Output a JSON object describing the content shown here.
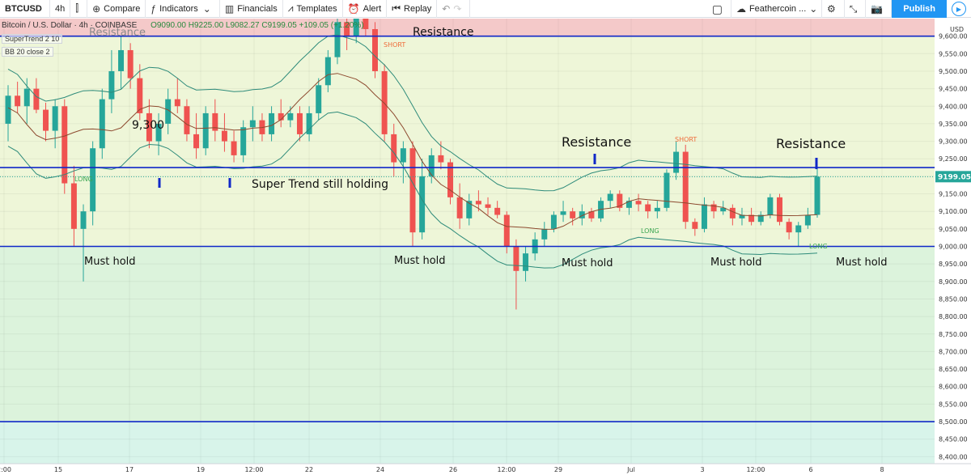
{
  "toolbar": {
    "symbol": "BTCUSD",
    "interval": "4h",
    "candle_icon": "candlestick-icon",
    "compare": "Compare",
    "indicators": "Indicators",
    "financials": "Financials",
    "templates": "Templates",
    "alert": "Alert",
    "replay": "Replay",
    "layout_name": "Feathercoin ...",
    "publish": "Publish"
  },
  "legend": {
    "title": "Bitcoin / U.S. Dollar · 4h · COINBASE",
    "ohlc": "O9090.00 H9225.00 L9082.27 C9199.05 +109.05 (+1.20%)",
    "indicator1": "SuperTrend 2 10",
    "indicator2": "BB 20 close 2"
  },
  "price_axis": {
    "currency": "USD",
    "labels": [
      "9,600.00",
      "9,550.00",
      "9,500.00",
      "9,450.00",
      "9,400.00",
      "9,350.00",
      "9,300.00",
      "9,250.00",
      "9,200.00",
      "9,150.00",
      "9,100.00",
      "9,050.00",
      "9,000.00",
      "8,950.00",
      "8,900.00",
      "8,850.00",
      "8,800.00",
      "8,750.00",
      "8,700.00",
      "8,650.00",
      "8,600.00",
      "8,550.00",
      "8,500.00",
      "8,450.00",
      "8,400.00"
    ],
    "current_price": "9199.05"
  },
  "time_axis": {
    "labels": [
      "2:00",
      "15",
      "17",
      "19",
      "12:00",
      "22",
      "24",
      "26",
      "12:00",
      "29",
      "Jul",
      "3",
      "12:00",
      "6",
      "8"
    ]
  },
  "annotations": {
    "resistance_top_left": "Resistance",
    "resistance_top": "Resistance",
    "resistance_mid": "Resistance",
    "resistance_right": "Resistance",
    "price_9300": "9,300",
    "supertrend": "Super Trend still holding",
    "must_hold_1": "Must hold",
    "must_hold_2": "Must hold",
    "must_hold_3": "Must hold",
    "must_hold_4": "Must hold",
    "must_hold_5": "Must hold",
    "long_1": "LONG",
    "long_2": "LONG",
    "long_3": "LONG",
    "short_1": "SHORT",
    "short_2": "SHORT"
  },
  "colors": {
    "resistance_zone": "#f4c9c9",
    "bull": "#26a69a",
    "bear": "#ef5350",
    "level_line": "#1028c8",
    "accent": "#2196f3"
  },
  "chart_data": {
    "type": "candlestick",
    "y_range": [
      8380,
      9650
    ],
    "levels": [
      9600,
      9225,
      9000,
      8500
    ],
    "candles": [
      [
        9350,
        9460,
        9300,
        9430
      ],
      [
        9430,
        9470,
        9380,
        9400
      ],
      [
        9400,
        9480,
        9350,
        9450
      ],
      [
        9450,
        9480,
        9380,
        9390
      ],
      [
        9390,
        9410,
        9300,
        9330
      ],
      [
        9330,
        9420,
        9280,
        9400
      ],
      [
        9400,
        9420,
        9150,
        9180
      ],
      [
        9180,
        9230,
        9000,
        9050
      ],
      [
        9050,
        9120,
        8900,
        9100
      ],
      [
        9100,
        9300,
        9060,
        9280
      ],
      [
        9280,
        9450,
        9250,
        9420
      ],
      [
        9420,
        9560,
        9380,
        9500
      ],
      [
        9500,
        9600,
        9450,
        9560
      ],
      [
        9560,
        9580,
        9450,
        9480
      ],
      [
        9480,
        9520,
        9360,
        9380
      ],
      [
        9380,
        9420,
        9280,
        9300
      ],
      [
        9300,
        9380,
        9260,
        9350
      ],
      [
        9350,
        9450,
        9320,
        9420
      ],
      [
        9420,
        9480,
        9380,
        9400
      ],
      [
        9400,
        9420,
        9300,
        9320
      ],
      [
        9320,
        9380,
        9250,
        9280
      ],
      [
        9280,
        9400,
        9260,
        9380
      ],
      [
        9380,
        9420,
        9300,
        9330
      ],
      [
        9330,
        9380,
        9270,
        9300
      ],
      [
        9300,
        9330,
        9240,
        9260
      ],
      [
        9260,
        9360,
        9240,
        9340
      ],
      [
        9340,
        9400,
        9300,
        9360
      ],
      [
        9360,
        9380,
        9300,
        9320
      ],
      [
        9320,
        9400,
        9300,
        9380
      ],
      [
        9380,
        9420,
        9340,
        9360
      ],
      [
        9360,
        9400,
        9340,
        9380
      ],
      [
        9380,
        9400,
        9300,
        9320
      ],
      [
        9320,
        9400,
        9300,
        9380
      ],
      [
        9380,
        9480,
        9360,
        9460
      ],
      [
        9460,
        9560,
        9440,
        9540
      ],
      [
        9540,
        9660,
        9520,
        9640
      ],
      [
        9640,
        9690,
        9560,
        9600
      ],
      [
        9600,
        9680,
        9580,
        9650
      ],
      [
        9650,
        9700,
        9600,
        9620
      ],
      [
        9620,
        9640,
        9480,
        9500
      ],
      [
        9500,
        9520,
        9300,
        9320
      ],
      [
        9320,
        9350,
        9200,
        9240
      ],
      [
        9240,
        9300,
        9180,
        9280
      ],
      [
        9280,
        9300,
        9000,
        9040
      ],
      [
        9040,
        9250,
        9020,
        9200
      ],
      [
        9200,
        9280,
        9180,
        9260
      ],
      [
        9260,
        9300,
        9220,
        9240
      ],
      [
        9240,
        9250,
        9120,
        9140
      ],
      [
        9140,
        9180,
        9050,
        9080
      ],
      [
        9080,
        9150,
        9060,
        9130
      ],
      [
        9130,
        9160,
        9100,
        9120
      ],
      [
        9120,
        9140,
        9090,
        9110
      ],
      [
        9110,
        9130,
        9080,
        9090
      ],
      [
        9090,
        9100,
        8980,
        9000
      ],
      [
        9000,
        9020,
        8820,
        8930
      ],
      [
        8930,
        9000,
        8900,
        8980
      ],
      [
        8980,
        9040,
        8960,
        9020
      ],
      [
        9020,
        9070,
        9000,
        9050
      ],
      [
        9050,
        9100,
        9040,
        9090
      ],
      [
        9090,
        9130,
        9070,
        9100
      ],
      [
        9100,
        9110,
        9060,
        9080
      ],
      [
        9080,
        9120,
        9060,
        9100
      ],
      [
        9100,
        9110,
        9070,
        9080
      ],
      [
        9080,
        9140,
        9070,
        9130
      ],
      [
        9130,
        9160,
        9110,
        9150
      ],
      [
        9150,
        9160,
        9100,
        9110
      ],
      [
        9110,
        9140,
        9090,
        9130
      ],
      [
        9130,
        9150,
        9100,
        9120
      ],
      [
        9120,
        9130,
        9080,
        9100
      ],
      [
        9100,
        9130,
        9080,
        9110
      ],
      [
        9110,
        9220,
        9100,
        9210
      ],
      [
        9210,
        9300,
        9190,
        9270
      ],
      [
        9270,
        9290,
        9050,
        9070
      ],
      [
        9070,
        9080,
        9030,
        9050
      ],
      [
        9050,
        9140,
        9040,
        9120
      ],
      [
        9120,
        9130,
        9080,
        9100
      ],
      [
        9100,
        9130,
        9090,
        9110
      ],
      [
        9110,
        9120,
        9060,
        9080
      ],
      [
        9080,
        9110,
        9060,
        9090
      ],
      [
        9090,
        9110,
        9060,
        9070
      ],
      [
        9070,
        9100,
        9060,
        9090
      ],
      [
        9090,
        9150,
        9080,
        9140
      ],
      [
        9140,
        9150,
        9060,
        9070
      ],
      [
        9070,
        9080,
        9020,
        9040
      ],
      [
        9040,
        9070,
        9000,
        9060
      ],
      [
        9060,
        9110,
        9050,
        9090
      ],
      [
        9090,
        9225,
        9082,
        9199
      ]
    ],
    "axis_label": "USD"
  }
}
